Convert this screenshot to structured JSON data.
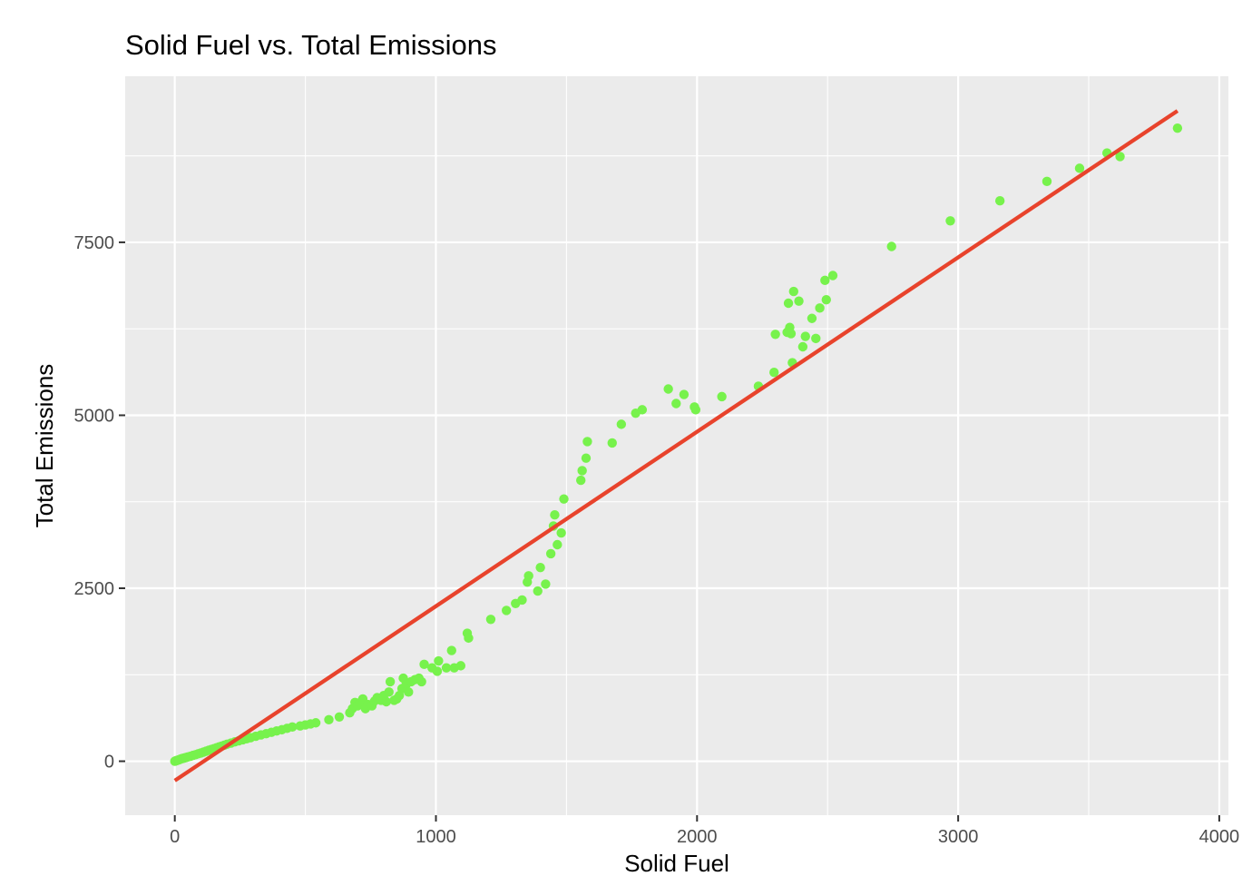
{
  "chart_data": {
    "type": "scatter",
    "title": "Solid Fuel vs. Total Emissions",
    "xlabel": "Solid Fuel",
    "ylabel": "Total Emissions",
    "xlim": [
      -190,
      4035
    ],
    "ylim": [
      -780,
      9900
    ],
    "x_ticks": [
      0,
      1000,
      2000,
      3000,
      4000
    ],
    "x_tick_labels": [
      "0",
      "1000",
      "2000",
      "3000",
      "4000"
    ],
    "y_ticks": [
      0,
      2500,
      5000,
      7500
    ],
    "y_tick_labels": [
      "0",
      "2500",
      "5000",
      "7500"
    ],
    "grid": true,
    "legend": "none",
    "colors": {
      "panel": "#ebebeb",
      "grid": "#ffffff",
      "points": "#77f24c",
      "fit_line": "#e8432c",
      "tick_text": "#4d4d4d",
      "tick_mark": "#333333"
    },
    "fit_line": {
      "x": [
        0,
        3840
      ],
      "y": [
        -280,
        9400
      ]
    },
    "points": [
      [
        0,
        0
      ],
      [
        3,
        5
      ],
      [
        6,
        8
      ],
      [
        10,
        15
      ],
      [
        15,
        20
      ],
      [
        20,
        28
      ],
      [
        25,
        35
      ],
      [
        30,
        40
      ],
      [
        35,
        45
      ],
      [
        40,
        50
      ],
      [
        45,
        55
      ],
      [
        50,
        62
      ],
      [
        60,
        72
      ],
      [
        70,
        85
      ],
      [
        80,
        95
      ],
      [
        90,
        108
      ],
      [
        100,
        120
      ],
      [
        110,
        132
      ],
      [
        120,
        145
      ],
      [
        130,
        158
      ],
      [
        140,
        170
      ],
      [
        150,
        182
      ],
      [
        160,
        195
      ],
      [
        170,
        208
      ],
      [
        180,
        220
      ],
      [
        190,
        232
      ],
      [
        200,
        245
      ],
      [
        215,
        262
      ],
      [
        230,
        280
      ],
      [
        245,
        295
      ],
      [
        260,
        310
      ],
      [
        275,
        325
      ],
      [
        290,
        340
      ],
      [
        310,
        360
      ],
      [
        330,
        380
      ],
      [
        350,
        398
      ],
      [
        370,
        418
      ],
      [
        390,
        438
      ],
      [
        410,
        455
      ],
      [
        430,
        475
      ],
      [
        450,
        495
      ],
      [
        480,
        510
      ],
      [
        500,
        525
      ],
      [
        520,
        540
      ],
      [
        540,
        555
      ],
      [
        590,
        600
      ],
      [
        630,
        640
      ],
      [
        670,
        700
      ],
      [
        680,
        760
      ],
      [
        690,
        850
      ],
      [
        700,
        800
      ],
      [
        710,
        850
      ],
      [
        720,
        900
      ],
      [
        730,
        760
      ],
      [
        740,
        820
      ],
      [
        755,
        800
      ],
      [
        765,
        870
      ],
      [
        775,
        920
      ],
      [
        790,
        880
      ],
      [
        800,
        950
      ],
      [
        810,
        860
      ],
      [
        820,
        1000
      ],
      [
        825,
        1150
      ],
      [
        840,
        880
      ],
      [
        850,
        900
      ],
      [
        860,
        950
      ],
      [
        870,
        1050
      ],
      [
        875,
        1200
      ],
      [
        885,
        1100
      ],
      [
        895,
        1000
      ],
      [
        905,
        1150
      ],
      [
        920,
        1180
      ],
      [
        935,
        1200
      ],
      [
        945,
        1150
      ],
      [
        955,
        1400
      ],
      [
        985,
        1350
      ],
      [
        1005,
        1300
      ],
      [
        1010,
        1450
      ],
      [
        1040,
        1350
      ],
      [
        1060,
        1600
      ],
      [
        1070,
        1350
      ],
      [
        1095,
        1380
      ],
      [
        1120,
        1850
      ],
      [
        1125,
        1780
      ],
      [
        1210,
        2050
      ],
      [
        1270,
        2180
      ],
      [
        1305,
        2280
      ],
      [
        1330,
        2330
      ],
      [
        1350,
        2590
      ],
      [
        1355,
        2680
      ],
      [
        1390,
        2460
      ],
      [
        1400,
        2800
      ],
      [
        1420,
        2560
      ],
      [
        1440,
        3000
      ],
      [
        1450,
        3400
      ],
      [
        1455,
        3560
      ],
      [
        1465,
        3130
      ],
      [
        1480,
        3300
      ],
      [
        1490,
        3790
      ],
      [
        1555,
        4060
      ],
      [
        1560,
        4200
      ],
      [
        1575,
        4380
      ],
      [
        1580,
        4620
      ],
      [
        1675,
        4600
      ],
      [
        1710,
        4870
      ],
      [
        1765,
        5030
      ],
      [
        1790,
        5080
      ],
      [
        1890,
        5380
      ],
      [
        1920,
        5170
      ],
      [
        1950,
        5300
      ],
      [
        1990,
        5120
      ],
      [
        1995,
        5080
      ],
      [
        2095,
        5270
      ],
      [
        2235,
        5420
      ],
      [
        2295,
        5620
      ],
      [
        2300,
        6170
      ],
      [
        2345,
        6200
      ],
      [
        2350,
        6620
      ],
      [
        2355,
        6270
      ],
      [
        2360,
        6180
      ],
      [
        2365,
        5760
      ],
      [
        2370,
        6790
      ],
      [
        2390,
        6650
      ],
      [
        2405,
        5990
      ],
      [
        2415,
        6140
      ],
      [
        2440,
        6400
      ],
      [
        2455,
        6110
      ],
      [
        2470,
        6550
      ],
      [
        2490,
        6950
      ],
      [
        2495,
        6670
      ],
      [
        2520,
        7020
      ],
      [
        2745,
        7440
      ],
      [
        2970,
        7810
      ],
      [
        3160,
        8100
      ],
      [
        3340,
        8380
      ],
      [
        3465,
        8570
      ],
      [
        3570,
        8790
      ],
      [
        3620,
        8740
      ],
      [
        3840,
        9150
      ]
    ]
  }
}
